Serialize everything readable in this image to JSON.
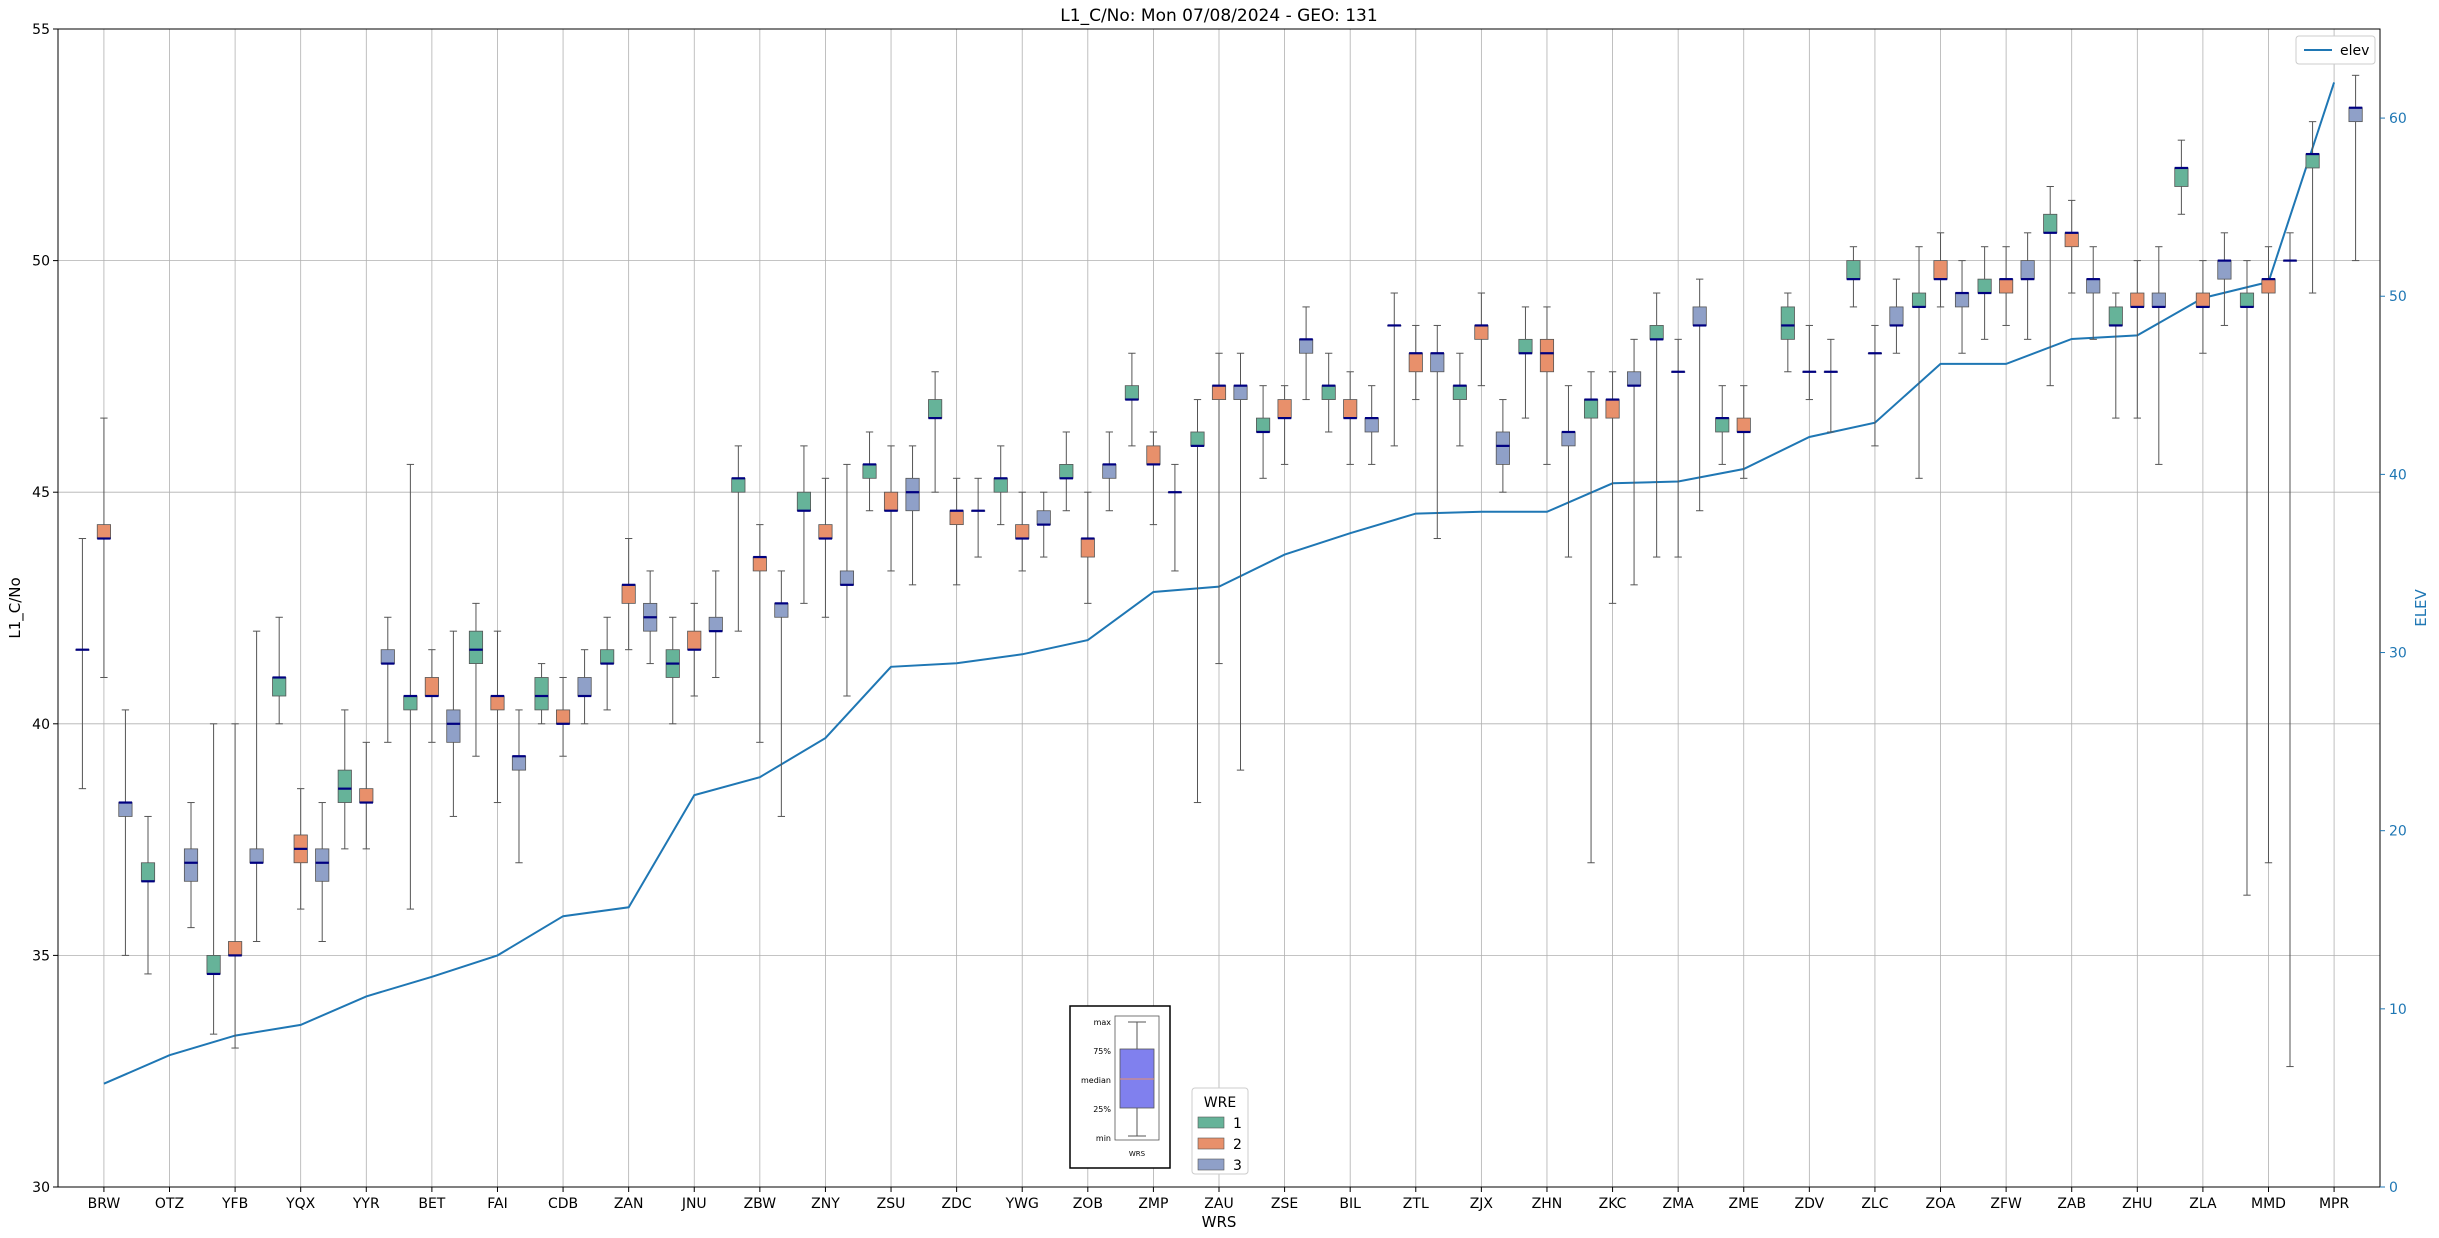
{
  "chart_data": {
    "type": "box+line",
    "title": "L1_C/No: Mon 07/08/2024 - GEO: 131",
    "xlabel": "WRS",
    "ylabel": "L1_C/No",
    "y2label": "ELEV",
    "ylim": [
      30,
      55
    ],
    "y2lim": [
      0,
      65
    ],
    "yticks": [
      30,
      35,
      40,
      45,
      50,
      55
    ],
    "y2ticks": [
      0,
      10,
      20,
      30,
      40,
      50,
      60
    ],
    "grid": true,
    "colors": {
      "wre1": "#66b399",
      "wre2": "#e8906b",
      "wre3": "#8fa0c8",
      "median": "#000080",
      "elev": "#1f77b4",
      "whisker": "#555555"
    },
    "categories": [
      "BRW",
      "OTZ",
      "YFB",
      "YQX",
      "YYR",
      "BET",
      "FAI",
      "CDB",
      "ZAN",
      "JNU",
      "ZBW",
      "ZNY",
      "ZSU",
      "ZDC",
      "YWG",
      "ZOB",
      "ZMP",
      "ZAU",
      "ZSE",
      "BIL",
      "ZTL",
      "ZJX",
      "ZHN",
      "ZKC",
      "ZMA",
      "ZME",
      "ZDV",
      "ZLC",
      "ZOA",
      "ZFW",
      "ZAB",
      "ZHU",
      "ZLA",
      "MMD",
      "MPR"
    ],
    "boxes": [
      {
        "cat": "BRW",
        "wre": 1,
        "min": 38.6,
        "q1": 41.6,
        "median": 41.6,
        "q3": 41.6,
        "max": 44.0
      },
      {
        "cat": "BRW",
        "wre": 2,
        "min": 41.0,
        "q1": 44.0,
        "median": 44.0,
        "q3": 44.3,
        "max": 46.6
      },
      {
        "cat": "BRW",
        "wre": 3,
        "min": 35.0,
        "q1": 38.0,
        "median": 38.3,
        "q3": 38.3,
        "max": 40.3
      },
      {
        "cat": "OTZ",
        "wre": 1,
        "min": 34.6,
        "q1": 36.6,
        "median": 36.6,
        "q3": 37.0,
        "max": 38.0
      },
      {
        "cat": "OTZ",
        "wre": 3,
        "min": 35.6,
        "q1": 36.6,
        "median": 37.0,
        "q3": 37.3,
        "max": 38.3
      },
      {
        "cat": "YFB",
        "wre": 1,
        "min": 33.3,
        "q1": 34.6,
        "median": 34.6,
        "q3": 35.0,
        "max": 40.0
      },
      {
        "cat": "YFB",
        "wre": 2,
        "min": 33.0,
        "q1": 35.0,
        "median": 35.0,
        "q3": 35.3,
        "max": 40.0
      },
      {
        "cat": "YFB",
        "wre": 3,
        "min": 35.3,
        "q1": 37.0,
        "median": 37.0,
        "q3": 37.3,
        "max": 42.0
      },
      {
        "cat": "YQX",
        "wre": 1,
        "min": 40.0,
        "q1": 40.6,
        "median": 41.0,
        "q3": 41.0,
        "max": 42.3
      },
      {
        "cat": "YQX",
        "wre": 2,
        "min": 36.0,
        "q1": 37.0,
        "median": 37.3,
        "q3": 37.6,
        "max": 38.6
      },
      {
        "cat": "YQX",
        "wre": 3,
        "min": 35.3,
        "q1": 36.6,
        "median": 37.0,
        "q3": 37.3,
        "max": 38.3
      },
      {
        "cat": "YYR",
        "wre": 1,
        "min": 37.3,
        "q1": 38.3,
        "median": 38.6,
        "q3": 39.0,
        "max": 40.3
      },
      {
        "cat": "YYR",
        "wre": 2,
        "min": 37.3,
        "q1": 38.3,
        "median": 38.3,
        "q3": 38.6,
        "max": 39.6
      },
      {
        "cat": "YYR",
        "wre": 3,
        "min": 39.6,
        "q1": 41.3,
        "median": 41.3,
        "q3": 41.6,
        "max": 42.3
      },
      {
        "cat": "BET",
        "wre": 1,
        "min": 36.0,
        "q1": 40.3,
        "median": 40.6,
        "q3": 40.6,
        "max": 45.6
      },
      {
        "cat": "BET",
        "wre": 2,
        "min": 39.6,
        "q1": 40.6,
        "median": 40.6,
        "q3": 41.0,
        "max": 41.6
      },
      {
        "cat": "BET",
        "wre": 3,
        "min": 38.0,
        "q1": 39.6,
        "median": 40.0,
        "q3": 40.3,
        "max": 42.0
      },
      {
        "cat": "FAI",
        "wre": 1,
        "min": 39.3,
        "q1": 41.3,
        "median": 41.6,
        "q3": 42.0,
        "max": 42.6
      },
      {
        "cat": "FAI",
        "wre": 2,
        "min": 38.3,
        "q1": 40.3,
        "median": 40.6,
        "q3": 40.6,
        "max": 42.0
      },
      {
        "cat": "FAI",
        "wre": 3,
        "min": 37.0,
        "q1": 39.0,
        "median": 39.3,
        "q3": 39.3,
        "max": 40.3
      },
      {
        "cat": "CDB",
        "wre": 1,
        "min": 40.0,
        "q1": 40.3,
        "median": 40.6,
        "q3": 41.0,
        "max": 41.3
      },
      {
        "cat": "CDB",
        "wre": 2,
        "min": 39.3,
        "q1": 40.0,
        "median": 40.0,
        "q3": 40.3,
        "max": 41.0
      },
      {
        "cat": "CDB",
        "wre": 3,
        "min": 40.0,
        "q1": 40.6,
        "median": 40.6,
        "q3": 41.0,
        "max": 41.6
      },
      {
        "cat": "ZAN",
        "wre": 1,
        "min": 40.3,
        "q1": 41.3,
        "median": 41.3,
        "q3": 41.6,
        "max": 42.3
      },
      {
        "cat": "ZAN",
        "wre": 2,
        "min": 41.6,
        "q1": 42.6,
        "median": 43.0,
        "q3": 43.0,
        "max": 44.0
      },
      {
        "cat": "ZAN",
        "wre": 3,
        "min": 41.3,
        "q1": 42.0,
        "median": 42.3,
        "q3": 42.6,
        "max": 43.3
      },
      {
        "cat": "JNU",
        "wre": 1,
        "min": 40.0,
        "q1": 41.0,
        "median": 41.3,
        "q3": 41.6,
        "max": 42.3
      },
      {
        "cat": "JNU",
        "wre": 2,
        "min": 40.6,
        "q1": 41.6,
        "median": 41.6,
        "q3": 42.0,
        "max": 42.6
      },
      {
        "cat": "JNU",
        "wre": 3,
        "min": 41.0,
        "q1": 42.0,
        "median": 42.0,
        "q3": 42.3,
        "max": 43.3
      },
      {
        "cat": "ZBW",
        "wre": 1,
        "min": 42.0,
        "q1": 45.0,
        "median": 45.3,
        "q3": 45.3,
        "max": 46.0
      },
      {
        "cat": "ZBW",
        "wre": 2,
        "min": 39.6,
        "q1": 43.3,
        "median": 43.6,
        "q3": 43.6,
        "max": 44.3
      },
      {
        "cat": "ZBW",
        "wre": 3,
        "min": 38.0,
        "q1": 42.3,
        "median": 42.6,
        "q3": 42.6,
        "max": 43.3
      },
      {
        "cat": "ZNY",
        "wre": 1,
        "min": 42.6,
        "q1": 44.6,
        "median": 44.6,
        "q3": 45.0,
        "max": 46.0
      },
      {
        "cat": "ZNY",
        "wre": 2,
        "min": 42.3,
        "q1": 44.0,
        "median": 44.0,
        "q3": 44.3,
        "max": 45.3
      },
      {
        "cat": "ZNY",
        "wre": 3,
        "min": 40.6,
        "q1": 43.0,
        "median": 43.0,
        "q3": 43.3,
        "max": 45.6
      },
      {
        "cat": "ZSU",
        "wre": 1,
        "min": 44.6,
        "q1": 45.3,
        "median": 45.6,
        "q3": 45.6,
        "max": 46.3
      },
      {
        "cat": "ZSU",
        "wre": 2,
        "min": 43.3,
        "q1": 44.6,
        "median": 44.6,
        "q3": 45.0,
        "max": 46.0
      },
      {
        "cat": "ZSU",
        "wre": 3,
        "min": 43.0,
        "q1": 44.6,
        "median": 45.0,
        "q3": 45.3,
        "max": 46.0
      },
      {
        "cat": "ZDC",
        "wre": 1,
        "min": 45.0,
        "q1": 46.6,
        "median": 46.6,
        "q3": 47.0,
        "max": 47.6
      },
      {
        "cat": "ZDC",
        "wre": 2,
        "min": 43.0,
        "q1": 44.3,
        "median": 44.6,
        "q3": 44.6,
        "max": 45.3
      },
      {
        "cat": "ZDC",
        "wre": 3,
        "min": 43.6,
        "q1": 44.6,
        "median": 44.6,
        "q3": 44.6,
        "max": 45.3
      },
      {
        "cat": "YWG",
        "wre": 1,
        "min": 44.3,
        "q1": 45.0,
        "median": 45.3,
        "q3": 45.3,
        "max": 46.0
      },
      {
        "cat": "YWG",
        "wre": 2,
        "min": 43.3,
        "q1": 44.0,
        "median": 44.0,
        "q3": 44.3,
        "max": 45.0
      },
      {
        "cat": "YWG",
        "wre": 3,
        "min": 43.6,
        "q1": 44.3,
        "median": 44.3,
        "q3": 44.6,
        "max": 45.0
      },
      {
        "cat": "ZOB",
        "wre": 1,
        "min": 44.6,
        "q1": 45.3,
        "median": 45.3,
        "q3": 45.6,
        "max": 46.3
      },
      {
        "cat": "ZOB",
        "wre": 2,
        "min": 42.6,
        "q1": 43.6,
        "median": 44.0,
        "q3": 44.0,
        "max": 45.0
      },
      {
        "cat": "ZOB",
        "wre": 3,
        "min": 44.6,
        "q1": 45.3,
        "median": 45.6,
        "q3": 45.6,
        "max": 46.3
      },
      {
        "cat": "ZMP",
        "wre": 1,
        "min": 46.0,
        "q1": 47.0,
        "median": 47.0,
        "q3": 47.3,
        "max": 48.0
      },
      {
        "cat": "ZMP",
        "wre": 2,
        "min": 44.3,
        "q1": 45.6,
        "median": 45.6,
        "q3": 46.0,
        "max": 46.3
      },
      {
        "cat": "ZMP",
        "wre": 3,
        "min": 43.3,
        "q1": 45.0,
        "median": 45.0,
        "q3": 45.0,
        "max": 45.6
      },
      {
        "cat": "ZAU",
        "wre": 1,
        "min": 38.3,
        "q1": 46.0,
        "median": 46.0,
        "q3": 46.3,
        "max": 47.0
      },
      {
        "cat": "ZAU",
        "wre": 2,
        "min": 41.3,
        "q1": 47.0,
        "median": 47.3,
        "q3": 47.3,
        "max": 48.0
      },
      {
        "cat": "ZAU",
        "wre": 3,
        "min": 39.0,
        "q1": 47.0,
        "median": 47.3,
        "q3": 47.3,
        "max": 48.0
      },
      {
        "cat": "ZSE",
        "wre": 1,
        "min": 45.3,
        "q1": 46.3,
        "median": 46.3,
        "q3": 46.6,
        "max": 47.3
      },
      {
        "cat": "ZSE",
        "wre": 2,
        "min": 45.6,
        "q1": 46.6,
        "median": 46.6,
        "q3": 47.0,
        "max": 47.3
      },
      {
        "cat": "ZSE",
        "wre": 3,
        "min": 47.0,
        "q1": 48.0,
        "median": 48.3,
        "q3": 48.3,
        "max": 49.0
      },
      {
        "cat": "BIL",
        "wre": 1,
        "min": 46.3,
        "q1": 47.0,
        "median": 47.3,
        "q3": 47.3,
        "max": 48.0
      },
      {
        "cat": "BIL",
        "wre": 2,
        "min": 45.6,
        "q1": 46.6,
        "median": 46.6,
        "q3": 47.0,
        "max": 47.6
      },
      {
        "cat": "BIL",
        "wre": 3,
        "min": 45.6,
        "q1": 46.3,
        "median": 46.6,
        "q3": 46.6,
        "max": 47.3
      },
      {
        "cat": "ZTL",
        "wre": 1,
        "min": 46.0,
        "q1": 48.6,
        "median": 48.6,
        "q3": 48.6,
        "max": 49.3
      },
      {
        "cat": "ZTL",
        "wre": 2,
        "min": 47.0,
        "q1": 47.6,
        "median": 48.0,
        "q3": 48.0,
        "max": 48.6
      },
      {
        "cat": "ZTL",
        "wre": 3,
        "min": 44.0,
        "q1": 47.6,
        "median": 48.0,
        "q3": 48.0,
        "max": 48.6
      },
      {
        "cat": "ZJX",
        "wre": 1,
        "min": 46.0,
        "q1": 47.0,
        "median": 47.3,
        "q3": 47.3,
        "max": 48.0
      },
      {
        "cat": "ZJX",
        "wre": 2,
        "min": 47.3,
        "q1": 48.3,
        "median": 48.6,
        "q3": 48.6,
        "max": 49.3
      },
      {
        "cat": "ZJX",
        "wre": 3,
        "min": 45.0,
        "q1": 45.6,
        "median": 46.0,
        "q3": 46.3,
        "max": 47.0
      },
      {
        "cat": "ZHN",
        "wre": 1,
        "min": 46.6,
        "q1": 48.0,
        "median": 48.0,
        "q3": 48.3,
        "max": 49.0
      },
      {
        "cat": "ZHN",
        "wre": 2,
        "min": 45.6,
        "q1": 47.6,
        "median": 48.0,
        "q3": 48.3,
        "max": 49.0
      },
      {
        "cat": "ZHN",
        "wre": 3,
        "min": 43.6,
        "q1": 46.0,
        "median": 46.3,
        "q3": 46.3,
        "max": 47.3
      },
      {
        "cat": "ZKC",
        "wre": 1,
        "min": 37.0,
        "q1": 46.6,
        "median": 47.0,
        "q3": 47.0,
        "max": 47.6
      },
      {
        "cat": "ZKC",
        "wre": 2,
        "min": 42.6,
        "q1": 46.6,
        "median": 47.0,
        "q3": 47.0,
        "max": 47.6
      },
      {
        "cat": "ZKC",
        "wre": 3,
        "min": 43.0,
        "q1": 47.3,
        "median": 47.3,
        "q3": 47.6,
        "max": 48.3
      },
      {
        "cat": "ZMA",
        "wre": 1,
        "min": 43.6,
        "q1": 48.3,
        "median": 48.3,
        "q3": 48.6,
        "max": 49.3
      },
      {
        "cat": "ZMA",
        "wre": 2,
        "min": 43.6,
        "q1": 47.6,
        "median": 47.6,
        "q3": 47.6,
        "max": 48.3
      },
      {
        "cat": "ZMA",
        "wre": 3,
        "min": 44.6,
        "q1": 48.6,
        "median": 48.6,
        "q3": 49.0,
        "max": 49.6
      },
      {
        "cat": "ZME",
        "wre": 1,
        "min": 45.6,
        "q1": 46.3,
        "median": 46.6,
        "q3": 46.6,
        "max": 47.3
      },
      {
        "cat": "ZME",
        "wre": 2,
        "min": 45.3,
        "q1": 46.3,
        "median": 46.3,
        "q3": 46.6,
        "max": 47.3
      },
      {
        "cat": "ZDV",
        "wre": 1,
        "min": 47.6,
        "q1": 48.3,
        "median": 48.6,
        "q3": 49.0,
        "max": 49.3
      },
      {
        "cat": "ZDV",
        "wre": 2,
        "min": 47.0,
        "q1": 47.6,
        "median": 47.6,
        "q3": 47.6,
        "max": 48.6
      },
      {
        "cat": "ZDV",
        "wre": 3,
        "min": 46.3,
        "q1": 47.6,
        "median": 47.6,
        "q3": 47.6,
        "max": 48.3
      },
      {
        "cat": "ZLC",
        "wre": 1,
        "min": 49.0,
        "q1": 49.6,
        "median": 49.6,
        "q3": 50.0,
        "max": 50.3
      },
      {
        "cat": "ZLC",
        "wre": 2,
        "min": 46.0,
        "q1": 48.0,
        "median": 48.0,
        "q3": 48.0,
        "max": 48.6
      },
      {
        "cat": "ZLC",
        "wre": 3,
        "min": 48.0,
        "q1": 48.6,
        "median": 48.6,
        "q3": 49.0,
        "max": 49.6
      },
      {
        "cat": "ZOA",
        "wre": 1,
        "min": 45.3,
        "q1": 49.0,
        "median": 49.0,
        "q3": 49.3,
        "max": 50.3
      },
      {
        "cat": "ZOA",
        "wre": 2,
        "min": 49.0,
        "q1": 49.6,
        "median": 49.6,
        "q3": 50.0,
        "max": 50.6
      },
      {
        "cat": "ZOA",
        "wre": 3,
        "min": 48.0,
        "q1": 49.0,
        "median": 49.3,
        "q3": 49.3,
        "max": 50.0
      },
      {
        "cat": "ZFW",
        "wre": 1,
        "min": 48.3,
        "q1": 49.3,
        "median": 49.3,
        "q3": 49.6,
        "max": 50.3
      },
      {
        "cat": "ZFW",
        "wre": 2,
        "min": 48.6,
        "q1": 49.3,
        "median": 49.6,
        "q3": 49.6,
        "max": 50.3
      },
      {
        "cat": "ZFW",
        "wre": 3,
        "min": 48.3,
        "q1": 49.6,
        "median": 49.6,
        "q3": 50.0,
        "max": 50.6
      },
      {
        "cat": "ZAB",
        "wre": 1,
        "min": 47.3,
        "q1": 50.6,
        "median": 50.6,
        "q3": 51.0,
        "max": 51.6
      },
      {
        "cat": "ZAB",
        "wre": 2,
        "min": 49.3,
        "q1": 50.3,
        "median": 50.6,
        "q3": 50.6,
        "max": 51.3
      },
      {
        "cat": "ZAB",
        "wre": 3,
        "min": 48.3,
        "q1": 49.3,
        "median": 49.6,
        "q3": 49.6,
        "max": 50.3
      },
      {
        "cat": "ZHU",
        "wre": 1,
        "min": 46.6,
        "q1": 48.6,
        "median": 48.6,
        "q3": 49.0,
        "max": 49.3
      },
      {
        "cat": "ZHU",
        "wre": 2,
        "min": 46.6,
        "q1": 49.0,
        "median": 49.0,
        "q3": 49.3,
        "max": 50.0
      },
      {
        "cat": "ZHU",
        "wre": 3,
        "min": 45.6,
        "q1": 49.0,
        "median": 49.0,
        "q3": 49.3,
        "max": 50.3
      },
      {
        "cat": "ZLA",
        "wre": 1,
        "min": 51.0,
        "q1": 51.6,
        "median": 52.0,
        "q3": 52.0,
        "max": 52.6
      },
      {
        "cat": "ZLA",
        "wre": 2,
        "min": 48.0,
        "q1": 49.0,
        "median": 49.0,
        "q3": 49.3,
        "max": 50.0
      },
      {
        "cat": "ZLA",
        "wre": 3,
        "min": 48.6,
        "q1": 49.6,
        "median": 50.0,
        "q3": 50.0,
        "max": 50.6
      },
      {
        "cat": "MMD",
        "wre": 1,
        "min": 36.3,
        "q1": 49.0,
        "median": 49.0,
        "q3": 49.3,
        "max": 50.0
      },
      {
        "cat": "MMD",
        "wre": 2,
        "min": 37.0,
        "q1": 49.3,
        "median": 49.6,
        "q3": 49.6,
        "max": 50.3
      },
      {
        "cat": "MMD",
        "wre": 3,
        "min": 32.6,
        "q1": 50.0,
        "median": 50.0,
        "q3": 50.0,
        "max": 50.6
      },
      {
        "cat": "MPR",
        "wre": 1,
        "min": 49.3,
        "q1": 52.0,
        "median": 52.3,
        "q3": 52.3,
        "max": 53.0
      },
      {
        "cat": "MPR",
        "wre": 3,
        "min": 50.0,
        "q1": 53.0,
        "median": 53.3,
        "q3": 53.3,
        "max": 54.0
      }
    ],
    "elev_series": {
      "name": "elev",
      "values": [
        5.8,
        7.4,
        8.5,
        9.1,
        10.7,
        11.8,
        13.0,
        15.2,
        15.7,
        22.0,
        23.0,
        25.2,
        29.2,
        29.4,
        29.9,
        30.7,
        33.4,
        33.7,
        35.5,
        36.7,
        37.8,
        37.9,
        37.9,
        39.5,
        39.6,
        40.3,
        42.1,
        42.9,
        46.2,
        46.2,
        47.6,
        47.8,
        49.9,
        50.8,
        62.0
      ]
    },
    "legend_wre": {
      "title": "WRE",
      "items": [
        "1",
        "2",
        "3"
      ]
    },
    "legend_elev": {
      "items": [
        "elev"
      ]
    },
    "inset_legend": {
      "labels": [
        "max",
        "75%",
        "median",
        "25%",
        "min"
      ],
      "xlabel": "WRS"
    }
  }
}
